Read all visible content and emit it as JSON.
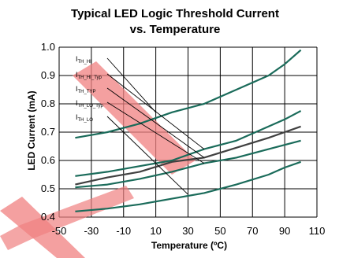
{
  "chart_data": {
    "type": "line",
    "title_line1": "Typical LED Logic Threshold Current",
    "title_line2": "vs. Temperature",
    "xlabel": "Temperature (ºC)",
    "ylabel": "LED Current (mA)",
    "xlim": [
      -50,
      110
    ],
    "ylim": [
      0.4,
      1.0
    ],
    "x_ticks": [
      "-50",
      "-30",
      "-10",
      "10",
      "30",
      "50",
      "70",
      "90",
      "110"
    ],
    "y_ticks": [
      "0.4",
      "0.5",
      "0.6",
      "0.7",
      "0.8",
      "0.9",
      "1.0"
    ],
    "grid": true,
    "colors": {
      "teal": "#1a6b5a",
      "dark": "#404040",
      "watermark": "#f08080"
    },
    "series": [
      {
        "name": "I_TH_HI",
        "color": "teal",
        "points": [
          [
            -40,
            0.68
          ],
          [
            -20,
            0.7
          ],
          [
            0,
            0.73
          ],
          [
            20,
            0.77
          ],
          [
            40,
            0.8
          ],
          [
            60,
            0.85
          ],
          [
            80,
            0.9
          ],
          [
            90,
            0.94
          ],
          [
            100,
            0.99
          ]
        ]
      },
      {
        "name": "I_TH_HI_Typ",
        "color": "teal",
        "points": [
          [
            -40,
            0.545
          ],
          [
            -20,
            0.56
          ],
          [
            0,
            0.58
          ],
          [
            20,
            0.6
          ],
          [
            40,
            0.64
          ],
          [
            60,
            0.67
          ],
          [
            80,
            0.72
          ],
          [
            90,
            0.745
          ],
          [
            100,
            0.775
          ]
        ]
      },
      {
        "name": "I_TH_TYP",
        "color": "dark",
        "points": [
          [
            -40,
            0.515
          ],
          [
            -20,
            0.54
          ],
          [
            0,
            0.56
          ],
          [
            20,
            0.595
          ],
          [
            40,
            0.61
          ],
          [
            60,
            0.645
          ],
          [
            80,
            0.68
          ],
          [
            90,
            0.7
          ],
          [
            100,
            0.72
          ]
        ]
      },
      {
        "name": "I_TH_LO_Typ",
        "color": "teal",
        "points": [
          [
            -40,
            0.505
          ],
          [
            -20,
            0.515
          ],
          [
            0,
            0.535
          ],
          [
            20,
            0.56
          ],
          [
            40,
            0.59
          ],
          [
            60,
            0.61
          ],
          [
            80,
            0.64
          ],
          [
            90,
            0.655
          ],
          [
            100,
            0.67
          ]
        ]
      },
      {
        "name": "I_TH_LO",
        "color": "teal",
        "points": [
          [
            -40,
            0.42
          ],
          [
            -20,
            0.43
          ],
          [
            0,
            0.445
          ],
          [
            20,
            0.465
          ],
          [
            40,
            0.485
          ],
          [
            60,
            0.515
          ],
          [
            80,
            0.55
          ],
          [
            90,
            0.575
          ],
          [
            100,
            0.595
          ]
        ]
      }
    ],
    "callouts": [
      {
        "main": "I",
        "sub": "TH_HI"
      },
      {
        "main": "I",
        "sub": "TH_HI_Typ"
      },
      {
        "main": "I",
        "sub": "TH_TYP"
      },
      {
        "main": "I",
        "sub": "TH_LO_Typ"
      },
      {
        "main": "I",
        "sub": "TH_LO"
      }
    ]
  }
}
